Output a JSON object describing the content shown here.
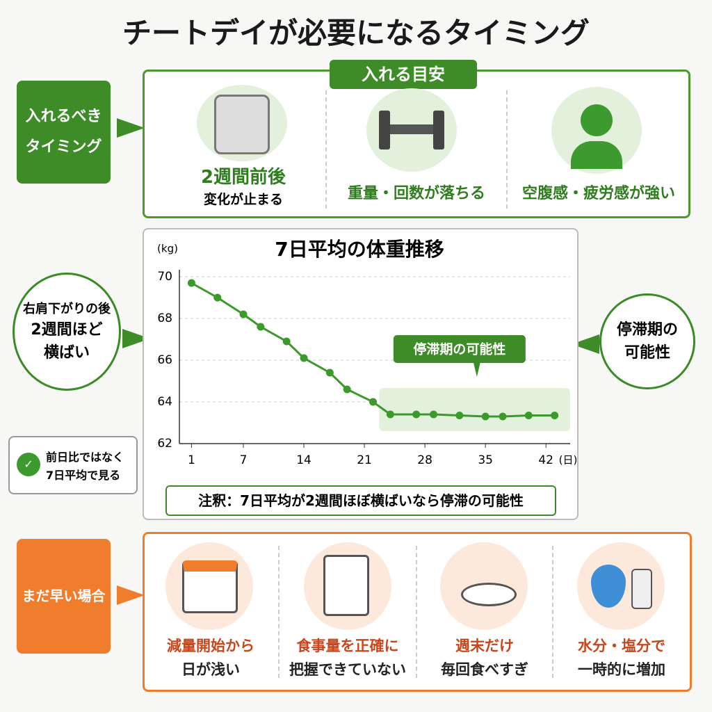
{
  "title": "チートデイが必要になるタイミング",
  "top": {
    "side_label": [
      "入れるべき",
      "タイミング"
    ],
    "header": "入れる目安",
    "items": [
      {
        "title": "2週間前後",
        "subtitle": "変化が止まる"
      },
      {
        "title": "重量・回数が落ちる"
      },
      {
        "title": "空腹感・疲労感が強い"
      }
    ]
  },
  "middle": {
    "left_bubble": [
      "右肩下がりの後",
      "2週間ほど",
      "横ばい"
    ],
    "right_bubble": [
      "停滞期の",
      "可能性"
    ],
    "check_note": [
      "前日比ではなく",
      "7日平均で見る"
    ],
    "footnote": "注釈：7日平均が2週間ほぼ横ばいなら停滞の可能性"
  },
  "chart_data": {
    "type": "line",
    "title": "7日平均の体重推移",
    "y_label": "(kg)",
    "x_label": "(日)",
    "annotation": "停滞期の可能性",
    "x": [
      1,
      4,
      7,
      9,
      12,
      14,
      17,
      19,
      22,
      24,
      27,
      29,
      32,
      35,
      37,
      40,
      43
    ],
    "series": [
      {
        "name": "7日平均",
        "color": "#3a9a2a",
        "values": [
          69.7,
          69.0,
          68.2,
          67.6,
          66.9,
          66.1,
          65.4,
          64.6,
          64.0,
          63.4,
          63.4,
          63.4,
          63.35,
          63.3,
          63.3,
          63.35,
          63.35
        ]
      }
    ],
    "xlim": [
      -0.4,
      44.8
    ],
    "ylim": [
      62,
      70
    ],
    "xticks": [
      1,
      7,
      14,
      21,
      28,
      35,
      42
    ],
    "yticks": [
      62,
      64,
      66,
      68,
      70
    ],
    "grid": true
  },
  "bottom": {
    "side_label": "まだ早い場合",
    "items": [
      [
        "減量開始から",
        "日が浅い"
      ],
      [
        "食事量を正確に",
        "把握できていない"
      ],
      [
        "週末だけ",
        "毎回食べすぎ"
      ],
      [
        "水分・塩分で",
        "一時的に増加"
      ]
    ]
  }
}
